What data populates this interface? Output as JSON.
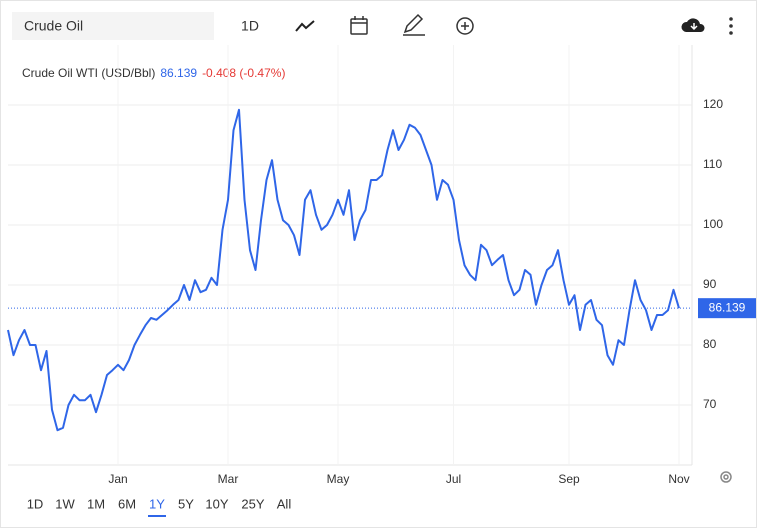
{
  "toolbar": {
    "search": "Crude Oil",
    "interval": "1D"
  },
  "ranges": [
    "1D",
    "1W",
    "1M",
    "6M",
    "1Y",
    "5Y",
    "10Y",
    "25Y",
    "All"
  ],
  "selected_range": 4,
  "chart_data": {
    "type": "line",
    "title": "Crude Oil WTI (USD/Bbl)",
    "last_price": 86.139,
    "change_label": "-0.408 (-0.47%)",
    "color": "#2f66e8",
    "categories": [
      null,
      null,
      null,
      null,
      null,
      null,
      null,
      null,
      null,
      null,
      null,
      null,
      null,
      null,
      null,
      null,
      null,
      null,
      null,
      null,
      "Jan",
      null,
      null,
      null,
      null,
      null,
      null,
      null,
      null,
      null,
      null,
      null,
      null,
      null,
      null,
      null,
      null,
      null,
      null,
      null,
      "Mar",
      null,
      null,
      null,
      null,
      null,
      null,
      null,
      null,
      null,
      null,
      null,
      null,
      null,
      null,
      null,
      null,
      null,
      null,
      null,
      "May",
      null,
      null,
      null,
      null,
      null,
      null,
      null,
      null,
      null,
      null,
      null,
      null,
      null,
      null,
      null,
      null,
      null,
      null,
      null,
      null,
      "Jul",
      null,
      null,
      null,
      null,
      null,
      null,
      null,
      null,
      null,
      null,
      null,
      null,
      null,
      null,
      null,
      null,
      null,
      null,
      null,
      null,
      "Sep",
      null,
      null,
      null,
      null,
      null,
      null,
      null,
      null,
      null,
      null,
      null,
      null,
      null,
      null,
      null,
      null,
      null,
      null,
      null,
      "Nov"
    ],
    "values": [
      82.5,
      78.3,
      80.8,
      82.5,
      80,
      80,
      75.8,
      79,
      69.2,
      65.8,
      66.2,
      70,
      71.7,
      70.8,
      70.8,
      71.7,
      68.8,
      71.7,
      75,
      75.8,
      76.7,
      75.8,
      77.5,
      80,
      81.7,
      83.3,
      84.5,
      84.2,
      85,
      85.8,
      86.7,
      87.5,
      90,
      87.5,
      90.8,
      88.8,
      89.2,
      91.2,
      90,
      99.2,
      104.2,
      115.8,
      119.2,
      104.2,
      95.8,
      92.5,
      100.8,
      107.5,
      110.8,
      104.2,
      100.8,
      100,
      98.3,
      95,
      104.2,
      105.8,
      101.7,
      99.2,
      100,
      101.7,
      104.2,
      101.7,
      105.8,
      97.5,
      100.8,
      102.5,
      107.5,
      107.5,
      108.3,
      112.5,
      115.8,
      112.5,
      114.2,
      116.7,
      116.2,
      115,
      112.5,
      110,
      104.2,
      107.5,
      106.7,
      104.2,
      97.5,
      93.3,
      91.7,
      90.8,
      96.7,
      95.8,
      93.3,
      94.2,
      95,
      90.8,
      88.3,
      89.2,
      92.5,
      91.7,
      86.7,
      90,
      92.5,
      93.3,
      95.8,
      90.8,
      86.7,
      88.3,
      82.5,
      86.7,
      87.5,
      84.2,
      83.3,
      78.3,
      76.7,
      80.8,
      80,
      85.8,
      90.8,
      87.5,
      85.8,
      82.5,
      85,
      85,
      85.8,
      89.2,
      86.139
    ],
    "ylim": [
      60,
      130
    ],
    "yticks": [
      70,
      80,
      90,
      100,
      110,
      120
    ],
    "grid": true
  }
}
